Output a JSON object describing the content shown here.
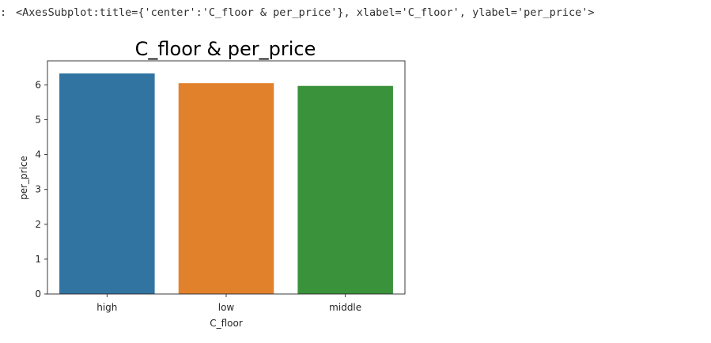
{
  "output": {
    "prompt_marker": ":",
    "repr_text": "<AxesSubplot:title={'center':'C_floor & per_price'}, xlabel='C_floor', ylabel='per_price'>"
  },
  "chart_data": {
    "type": "bar",
    "title": "C_floor & per_price",
    "xlabel": "C_floor",
    "ylabel": "per_price",
    "categories": [
      "high",
      "low",
      "middle"
    ],
    "values": [
      6.33,
      6.05,
      5.97
    ],
    "colors": [
      "#3274a1",
      "#e1812c",
      "#3a923a"
    ],
    "ylim": [
      0,
      6.7
    ],
    "yticks": [
      0,
      1,
      2,
      3,
      4,
      5,
      6
    ],
    "grid": false
  }
}
